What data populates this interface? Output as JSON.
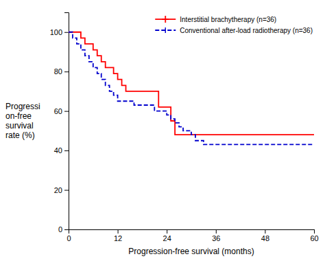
{
  "chart_data": {
    "type": "step",
    "xlabel": "Progression-free survival (months)",
    "ylabel": [
      "Progressi",
      "on-free",
      "survival",
      "rate (%)"
    ],
    "xlim": [
      0,
      60
    ],
    "ylim": [
      0,
      110
    ],
    "xticks": [
      0,
      12,
      24,
      36,
      48,
      60
    ],
    "yticks": [
      0,
      20,
      40,
      60,
      80,
      100
    ],
    "grid": false,
    "legend": "upper right",
    "series": [
      {
        "name": "Interstitial brachytherapy (n=36)",
        "color": "#ff0000",
        "line_style": "solid",
        "marker": "plus",
        "x": [
          0,
          2,
          3,
          4,
          6,
          7,
          8,
          9,
          11,
          12,
          13,
          14,
          15,
          16,
          17,
          18,
          19,
          20,
          21,
          22,
          23,
          24,
          25,
          26,
          27,
          28,
          29,
          30,
          36,
          60
        ],
        "values": [
          100,
          100,
          97,
          94,
          91,
          88,
          85,
          82,
          79,
          76,
          73,
          70,
          70,
          70,
          70,
          70,
          70,
          70,
          70,
          62,
          62,
          62,
          55,
          48,
          48,
          48,
          48,
          48,
          48,
          48
        ]
      },
      {
        "name": "Conventional after-load radiotherapy (n=36)",
        "color": "#0000cd",
        "line_style": "dashed",
        "marker": "vline",
        "x": [
          0,
          1,
          2,
          3,
          4,
          5,
          6,
          7,
          8,
          9,
          10,
          11,
          12,
          13,
          15,
          16,
          18,
          19,
          20,
          21,
          22,
          23,
          24,
          25,
          26,
          27,
          28,
          30,
          31,
          33,
          34,
          36,
          60
        ],
        "values": [
          100,
          97,
          94,
          91,
          88,
          85,
          82,
          79,
          76,
          73,
          70,
          68,
          65,
          65,
          65,
          63,
          63,
          63,
          63,
          60,
          60,
          60,
          58,
          56,
          54,
          52,
          50,
          48,
          45,
          43,
          43,
          43,
          43
        ]
      }
    ]
  }
}
